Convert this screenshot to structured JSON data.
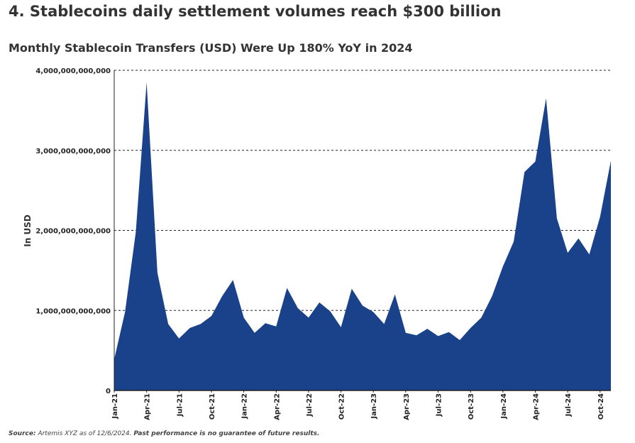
{
  "headline": "4. Stablecoins daily settlement volumes reach $300 billion",
  "source": {
    "label": "Source:",
    "text": "Artemis XYZ as of 12/6/2024.",
    "disclaimer": "Past performance is no guarantee of future results."
  },
  "colors": {
    "area": "#1a428a",
    "grid": "#222222",
    "axis": "#222222"
  },
  "chart_data": {
    "type": "area",
    "title": "Monthly Stablecoin Transfers (USD) Were Up 180% YoY in 2024",
    "xlabel": "",
    "ylabel": "In USD",
    "ylim": [
      0,
      4000000000000
    ],
    "yticks": [
      {
        "value": 0,
        "label": "0"
      },
      {
        "value": 1000000000000,
        "label": "1,000,000,000,000"
      },
      {
        "value": 2000000000000,
        "label": "2,000,000,000,000"
      },
      {
        "value": 3000000000000,
        "label": "3,000,000,000,000"
      },
      {
        "value": 4000000000000,
        "label": "4,000,000,000,000"
      }
    ],
    "grid": true,
    "x": [
      "Jan-21",
      "Feb-21",
      "Mar-21",
      "Apr-21",
      "May-21",
      "Jun-21",
      "Jul-21",
      "Aug-21",
      "Sep-21",
      "Oct-21",
      "Nov-21",
      "Dec-21",
      "Jan-22",
      "Feb-22",
      "Mar-22",
      "Apr-22",
      "May-22",
      "Jun-22",
      "Jul-22",
      "Aug-22",
      "Sep-22",
      "Oct-22",
      "Nov-22",
      "Dec-22",
      "Jan-23",
      "Feb-23",
      "Mar-23",
      "Apr-23",
      "May-23",
      "Jun-23",
      "Jul-23",
      "Aug-23",
      "Sep-23",
      "Oct-23",
      "Nov-23",
      "Dec-23",
      "Jan-24",
      "Feb-24",
      "Mar-24",
      "Apr-24",
      "May-24",
      "Jun-24",
      "Jul-24",
      "Aug-24",
      "Sep-24",
      "Oct-24",
      "Nov-24"
    ],
    "xtick_labels": [
      "Jan-21",
      "Apr-21",
      "Jul-21",
      "Oct-21",
      "Jan-22",
      "Apr-22",
      "Jul-22",
      "Oct-22",
      "Jan-23",
      "Apr-23",
      "Jul-23",
      "Oct-23",
      "Jan-24",
      "Apr-24",
      "Jul-24",
      "Oct-24"
    ],
    "series": [
      {
        "name": "Monthly Stablecoin Transfers (USD)",
        "values": [
          390000000000,
          980000000000,
          1980000000000,
          3850000000000,
          1470000000000,
          830000000000,
          650000000000,
          780000000000,
          830000000000,
          930000000000,
          1180000000000,
          1380000000000,
          910000000000,
          720000000000,
          840000000000,
          800000000000,
          1280000000000,
          1030000000000,
          910000000000,
          1100000000000,
          990000000000,
          790000000000,
          1270000000000,
          1060000000000,
          980000000000,
          830000000000,
          1200000000000,
          720000000000,
          690000000000,
          770000000000,
          680000000000,
          730000000000,
          630000000000,
          780000000000,
          910000000000,
          1180000000000,
          1550000000000,
          1860000000000,
          2730000000000,
          2860000000000,
          3650000000000,
          2150000000000,
          1720000000000,
          1900000000000,
          1700000000000,
          2170000000000,
          2870000000000
        ]
      }
    ]
  }
}
